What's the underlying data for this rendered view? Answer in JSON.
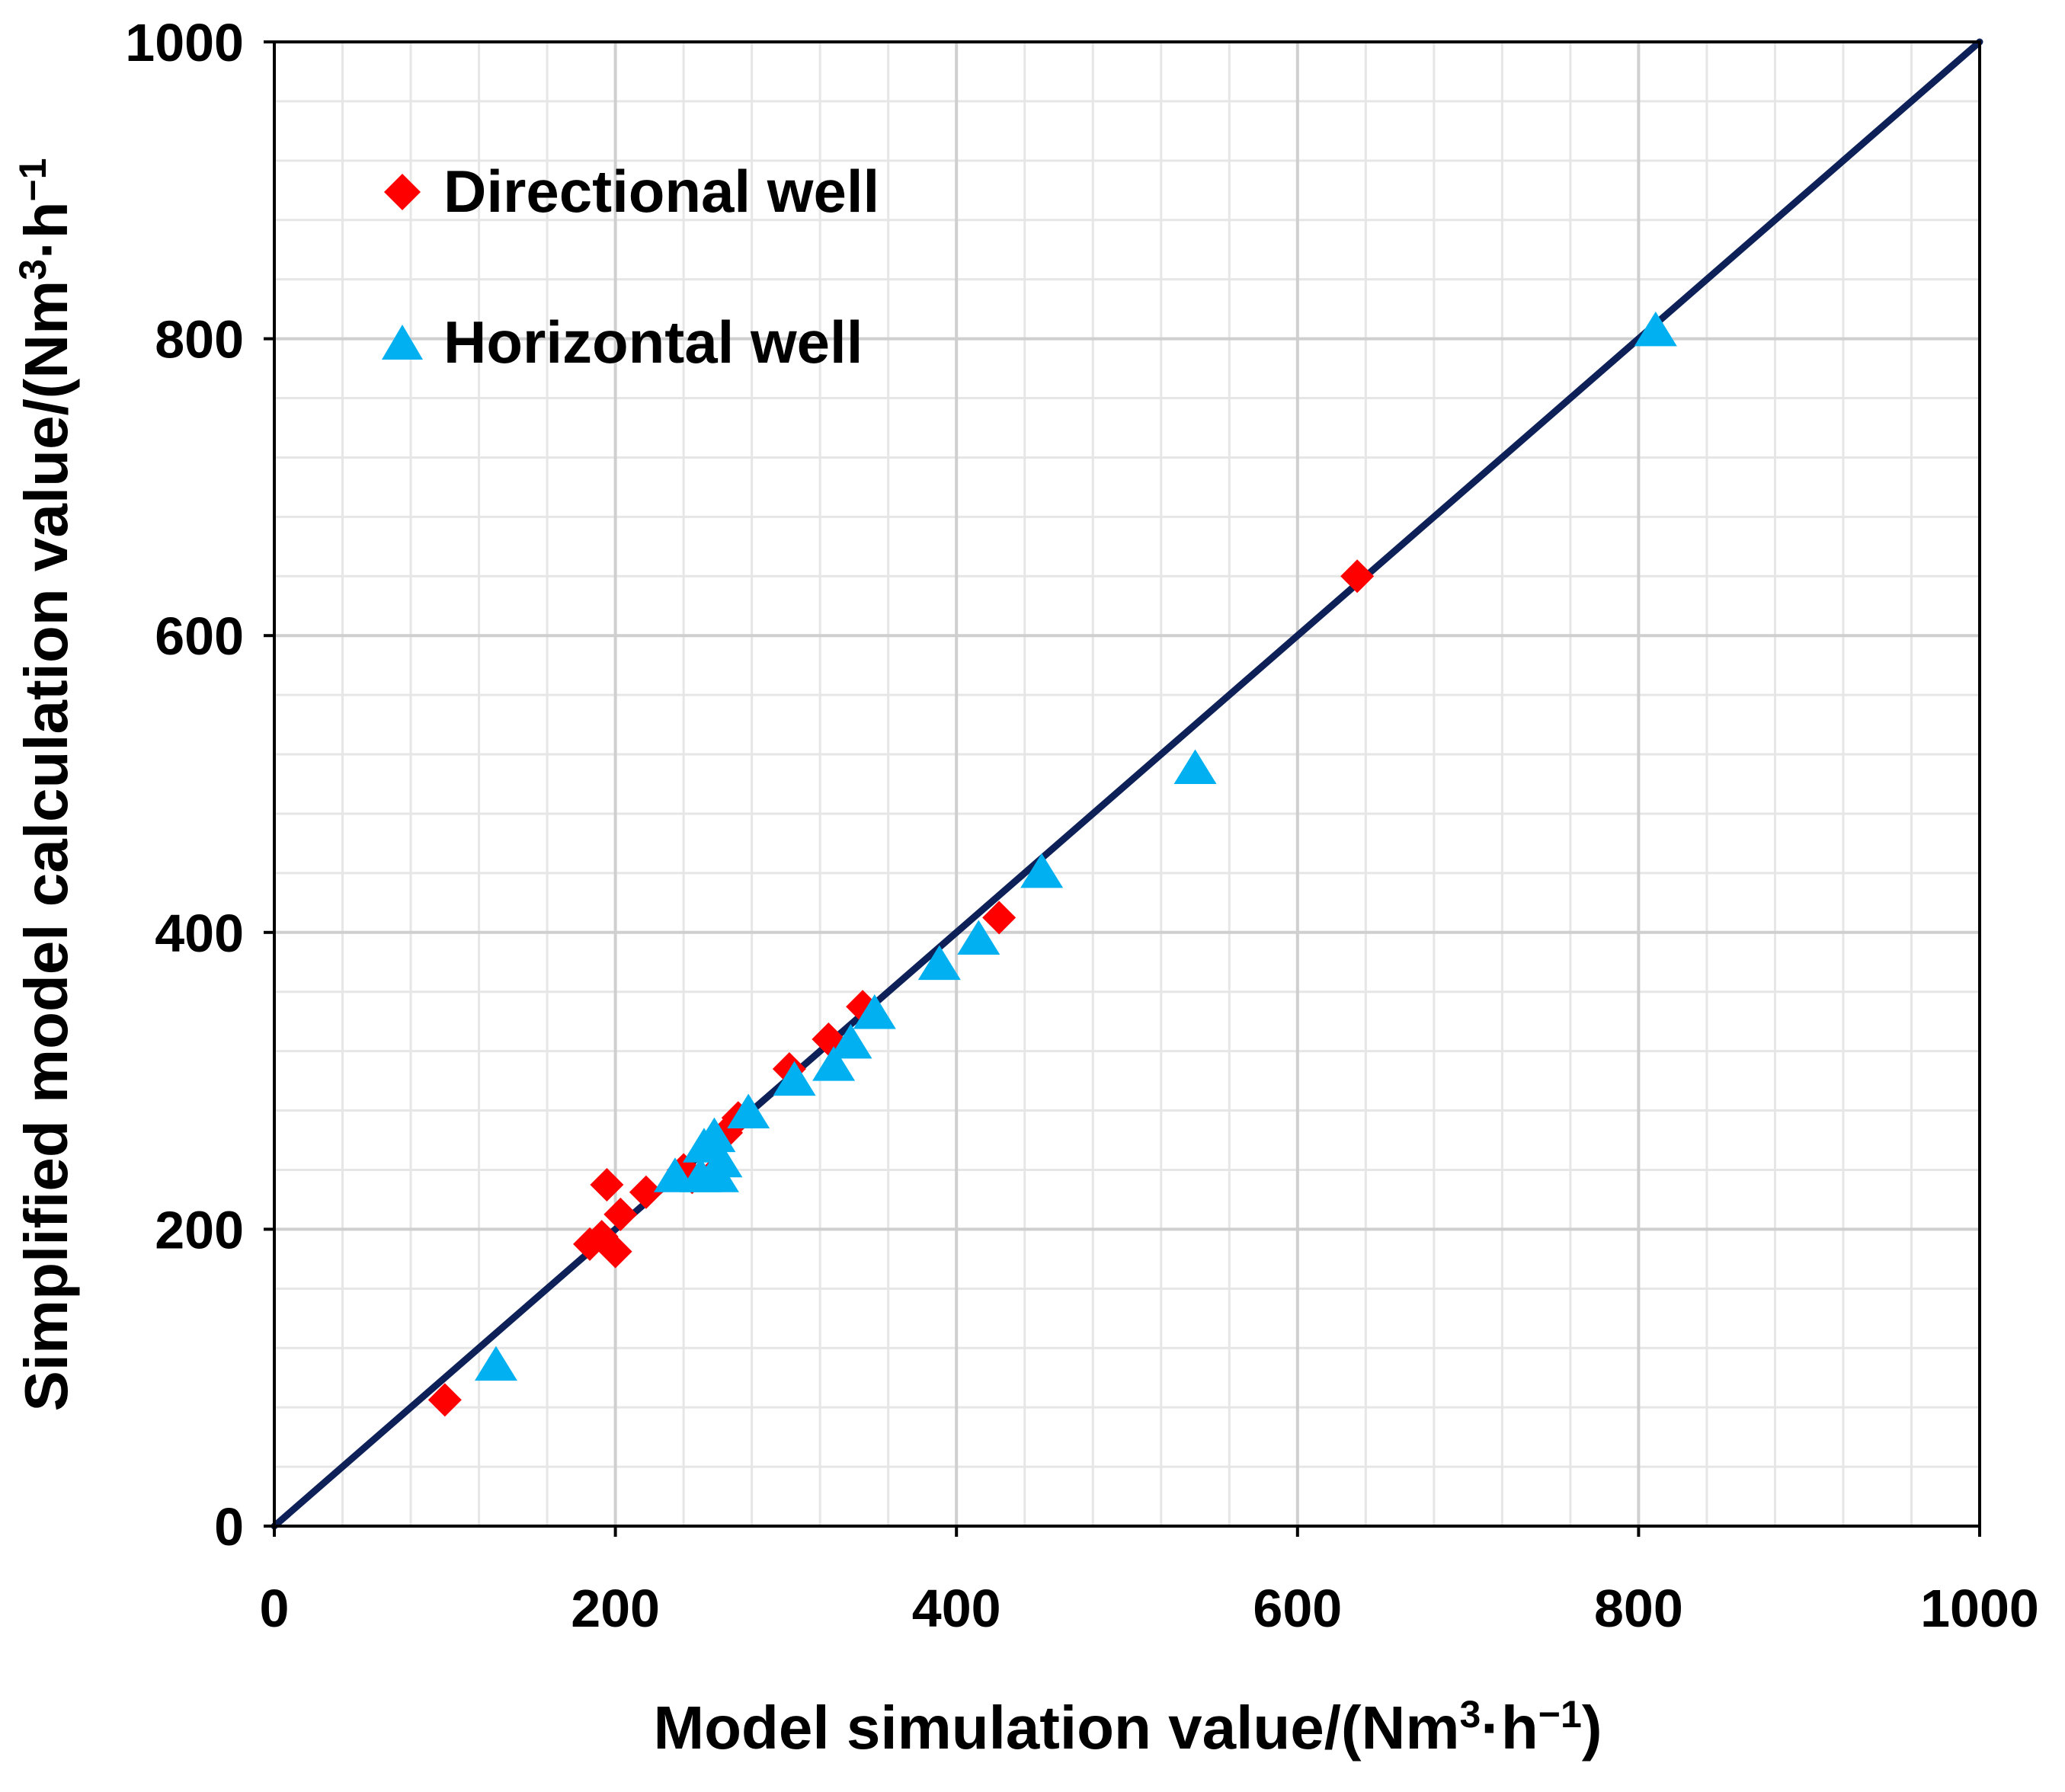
{
  "chart_data": {
    "type": "scatter",
    "title": "",
    "xlabel": {
      "main": "Model simulation value/(Nm",
      "sup1": "3",
      "mid": "·h",
      "sup2": "−1",
      "end": ")"
    },
    "ylabel": {
      "main": "Simplified model calculation value/(Nm",
      "sup1": "3",
      "mid": "·h",
      "sup2": "−1"
    },
    "xlim": [
      0,
      1000
    ],
    "ylim": [
      0,
      1000
    ],
    "x_ticks": [
      0,
      200,
      400,
      600,
      800,
      1000
    ],
    "y_ticks": [
      0,
      200,
      400,
      600,
      800,
      1000
    ],
    "x_tick_labels": [
      "0",
      "200",
      "400",
      "600",
      "800",
      "1000"
    ],
    "y_tick_labels": [
      "0",
      "200",
      "400",
      "600",
      "800",
      "1000"
    ],
    "minor_step": 40,
    "grid": true,
    "legend_position": "top-left",
    "reference_line": {
      "name": "y = x",
      "from": [
        0,
        0
      ],
      "to": [
        1000,
        1000
      ],
      "color": "#0d2158"
    },
    "series": [
      {
        "name": "Directional well",
        "marker": "diamond",
        "color": "#ff0000",
        "points": [
          [
            100,
            85
          ],
          [
            185,
            190
          ],
          [
            192,
            195
          ],
          [
            195,
            230
          ],
          [
            200,
            185
          ],
          [
            203,
            210
          ],
          [
            218,
            225
          ],
          [
            240,
            240
          ],
          [
            245,
            235
          ],
          [
            258,
            238
          ],
          [
            265,
            265
          ],
          [
            272,
            275
          ],
          [
            302,
            308
          ],
          [
            325,
            328
          ],
          [
            345,
            350
          ],
          [
            425,
            410
          ],
          [
            635,
            640
          ]
        ]
      },
      {
        "name": "Horizontal well",
        "marker": "triangle",
        "color": "#00b0f0",
        "points": [
          [
            130,
            108
          ],
          [
            235,
            235
          ],
          [
            250,
            235
          ],
          [
            252,
            255
          ],
          [
            258,
            262
          ],
          [
            260,
            235
          ],
          [
            262,
            245
          ],
          [
            278,
            278
          ],
          [
            305,
            300
          ],
          [
            328,
            310
          ],
          [
            338,
            325
          ],
          [
            352,
            345
          ],
          [
            390,
            378
          ],
          [
            413,
            395
          ],
          [
            450,
            440
          ],
          [
            540,
            510
          ],
          [
            810,
            805
          ]
        ]
      }
    ]
  }
}
